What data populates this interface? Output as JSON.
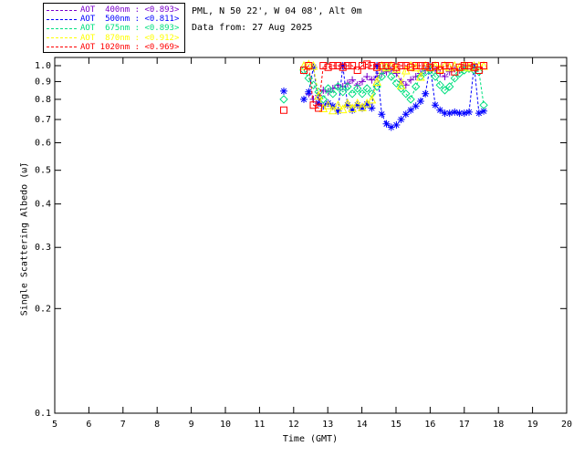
{
  "header": {
    "line1": "PML, N 50 22', W 04 08', Alt 0m",
    "line2": "Data from: 27 Aug 2025"
  },
  "legend": {
    "entries": [
      {
        "label": "AOT  400nm : <0.893>",
        "color": "#7a00cc"
      },
      {
        "label": "AOT  500nm : <0.811>",
        "color": "#0000ff"
      },
      {
        "label": "AOT  675nm : <0.893>",
        "color": "#00df7f"
      },
      {
        "label": "AOT  870nm : <0.912>",
        "color": "#ffff00"
      },
      {
        "label": "AOT 1020nm : <0.969>",
        "color": "#ff0000"
      }
    ]
  },
  "chart_data": {
    "type": "line",
    "title": "",
    "xlabel": "Time (GMT)",
    "ylabel": "Single Scattering Albedo (ω̃)",
    "x_axis": {
      "min": 5,
      "max": 20,
      "ticks": [
        5,
        6,
        7,
        8,
        9,
        10,
        11,
        12,
        13,
        14,
        15,
        16,
        17,
        18,
        19,
        20
      ]
    },
    "y_axis": {
      "scale": "log",
      "min": 0.1,
      "max": 1.056,
      "ticks": [
        1.0,
        0.9,
        0.8,
        0.7,
        0.6,
        0.5,
        0.4,
        0.3,
        0.2,
        0.1
      ],
      "tick_labels": [
        "1.0",
        "0.9",
        "0.8",
        "0.7",
        "0.6",
        "0.5",
        "0.4",
        "0.3",
        "0.2",
        "0.1"
      ]
    },
    "grid": false,
    "legend_position": "top-left",
    "series": [
      {
        "name": "AOT 400nm",
        "mean_label": "<0.893>",
        "color": "#7a00cc",
        "marker": "plus",
        "linestyle": "dashed",
        "x": [
          12.44,
          12.58,
          12.73,
          12.87,
          13.01,
          13.15,
          13.3,
          13.44,
          13.58,
          13.72,
          13.87,
          14.01,
          14.15,
          14.29,
          14.44,
          14.58,
          14.72,
          14.86,
          15.01,
          15.15,
          15.29,
          15.43,
          15.58,
          15.72,
          15.86,
          16.0,
          16.15,
          16.29,
          16.43,
          16.57,
          16.72,
          16.86,
          17.0
        ],
        "y": [
          0.83,
          0.8,
          0.82,
          0.85,
          0.84,
          0.86,
          0.88,
          0.87,
          0.89,
          0.91,
          0.88,
          0.9,
          0.93,
          0.91,
          0.93,
          0.95,
          0.96,
          0.97,
          0.95,
          0.9,
          0.88,
          0.91,
          0.93,
          0.95,
          0.97,
          0.99,
          0.97,
          0.95,
          0.93,
          0.96,
          0.98,
          0.97,
          1.0
        ]
      },
      {
        "name": "AOT 500nm",
        "mean_label": "<0.811>",
        "color": "#0000ff",
        "marker": "asterisk",
        "linestyle": "dashed",
        "x": [
          11.71,
          12.3,
          12.44,
          12.58,
          12.73,
          12.87,
          13.01,
          13.15,
          13.3,
          13.44,
          13.58,
          13.72,
          13.87,
          14.01,
          14.15,
          14.29,
          14.44,
          14.58,
          14.72,
          14.86,
          15.01,
          15.15,
          15.29,
          15.43,
          15.58,
          15.72,
          15.86,
          16.0,
          16.15,
          16.29,
          16.43,
          16.57,
          16.72,
          16.86,
          17.0,
          17.14,
          17.29,
          17.43,
          17.57
        ],
        "y": [
          0.845,
          0.8,
          0.84,
          0.99,
          0.78,
          0.765,
          0.78,
          0.765,
          0.74,
          1.0,
          0.77,
          0.745,
          0.77,
          0.755,
          0.775,
          0.755,
          1.0,
          0.725,
          0.68,
          0.665,
          0.675,
          0.7,
          0.725,
          0.745,
          0.765,
          0.79,
          0.83,
          1.0,
          0.77,
          0.745,
          0.73,
          0.73,
          0.735,
          0.73,
          0.73,
          0.735,
          1.0,
          0.73,
          0.74
        ]
      },
      {
        "name": "AOT 675nm",
        "mean_label": "<0.893>",
        "color": "#00df7f",
        "marker": "diamond",
        "linestyle": "dashed",
        "x": [
          11.71,
          12.3,
          12.44,
          12.58,
          12.73,
          12.87,
          13.01,
          13.15,
          13.3,
          13.44,
          13.58,
          13.72,
          13.87,
          14.01,
          14.15,
          14.29,
          14.44,
          14.58,
          14.72,
          14.86,
          15.01,
          15.15,
          15.29,
          15.43,
          15.58,
          15.72,
          15.86,
          16.0,
          16.15,
          16.29,
          16.43,
          16.57,
          16.72,
          16.86,
          17.0,
          17.14,
          17.29,
          17.43,
          17.57
        ],
        "y": [
          0.8,
          0.97,
          0.92,
          0.88,
          0.84,
          0.8,
          0.86,
          0.83,
          0.87,
          0.84,
          0.87,
          0.83,
          0.86,
          0.83,
          0.86,
          0.83,
          0.87,
          0.93,
          0.99,
          0.93,
          0.89,
          0.86,
          0.83,
          0.8,
          0.87,
          0.93,
          0.96,
          0.97,
          0.93,
          0.88,
          0.85,
          0.87,
          0.92,
          0.95,
          0.97,
          0.98,
          0.97,
          0.96,
          0.77
        ]
      },
      {
        "name": "AOT 870nm",
        "mean_label": "<0.912>",
        "color": "#ffff00",
        "marker": "triangle",
        "linestyle": "dashed",
        "x": [
          12.3,
          12.44,
          12.58,
          12.73,
          12.87,
          13.01,
          13.15,
          13.3,
          13.44,
          13.58,
          13.72,
          13.87,
          14.01,
          14.15,
          14.29,
          14.44,
          14.58,
          14.72,
          14.86,
          15.01,
          15.15,
          15.29,
          15.43,
          15.58,
          15.72,
          15.86,
          16.0,
          16.15,
          16.29,
          16.43,
          16.57,
          16.72,
          16.86,
          17.0,
          17.14,
          17.29,
          17.43,
          17.57
        ],
        "y": [
          1.0,
          1.01,
          1.0,
          0.82,
          0.755,
          0.77,
          0.745,
          0.77,
          0.75,
          0.78,
          0.755,
          0.78,
          0.76,
          0.78,
          0.8,
          0.9,
          1.0,
          0.99,
          1.0,
          0.98,
          0.88,
          0.97,
          1.0,
          0.99,
          0.93,
          1.0,
          0.99,
          1.0,
          0.98,
          1.0,
          0.99,
          1.0,
          0.99,
          1.0,
          0.99,
          1.0,
          1.0,
          1.0
        ]
      },
      {
        "name": "AOT 1020nm",
        "mean_label": "<0.969>",
        "color": "#ff0000",
        "marker": "square",
        "linestyle": "dashed",
        "x": [
          11.71,
          12.3,
          12.44,
          12.58,
          12.73,
          12.87,
          13.01,
          13.15,
          13.3,
          13.44,
          13.58,
          13.72,
          13.87,
          14.01,
          14.15,
          14.29,
          14.44,
          14.58,
          14.72,
          14.86,
          15.01,
          15.15,
          15.29,
          15.43,
          15.58,
          15.72,
          15.86,
          16.0,
          16.15,
          16.29,
          16.43,
          16.57,
          16.72,
          16.86,
          17.0,
          17.14,
          17.29,
          17.43,
          17.57
        ],
        "y": [
          0.745,
          0.97,
          1.0,
          0.77,
          0.755,
          1.0,
          0.99,
          1.0,
          1.0,
          0.99,
          1.0,
          1.0,
          0.97,
          1.0,
          1.01,
          1.0,
          0.99,
          1.0,
          1.0,
          1.0,
          0.99,
          1.0,
          1.0,
          0.99,
          1.0,
          1.0,
          1.0,
          0.99,
          1.0,
          0.97,
          1.0,
          1.0,
          0.96,
          0.99,
          1.0,
          1.0,
          0.99,
          0.97,
          1.0
        ]
      }
    ]
  }
}
